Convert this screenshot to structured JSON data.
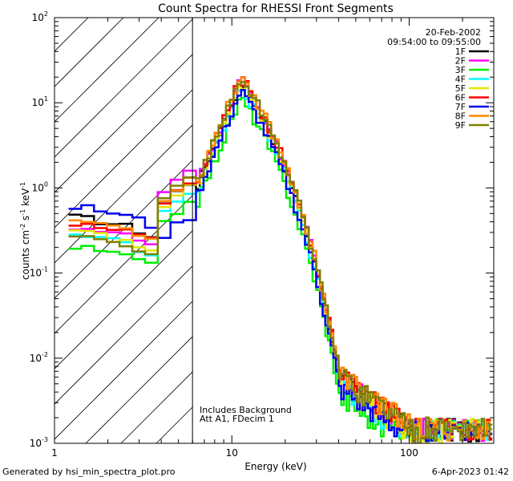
{
  "chart_data": {
    "type": "line",
    "title": "Count Spectra for RHESSI Front Segments",
    "xlabel": "Energy (keV)",
    "ylabel_parts": {
      "base": "counts cm",
      "exp1": "-2",
      "mid": " s",
      "exp2": "-1",
      "unit": " keV",
      "exp3": "-1"
    },
    "xscale": "log",
    "yscale": "log",
    "xlim": [
      1,
      300
    ],
    "ylim": [
      0.001,
      100
    ],
    "x_ticks": [
      {
        "value": 1,
        "label": "1"
      },
      {
        "value": 10,
        "label": "10"
      },
      {
        "value": 100,
        "label": "100"
      }
    ],
    "y_ticks": [
      {
        "value": 0.001,
        "base": "10",
        "exp": "-3"
      },
      {
        "value": 0.01,
        "base": "10",
        "exp": "-2"
      },
      {
        "value": 0.1,
        "base": "10",
        "exp": "-1"
      },
      {
        "value": 1,
        "base": "10",
        "exp": "0"
      },
      {
        "value": 10,
        "base": "10",
        "exp": "1"
      },
      {
        "value": 100,
        "base": "10",
        "exp": "2"
      }
    ],
    "date": "20-Feb-2002",
    "time_range": "09:54:00 to 09:55:00",
    "annotations": [
      "Includes Background",
      "Att A1, FDecim 1"
    ],
    "excluded_region_max_kev": 6,
    "legend_position": "top-right",
    "series": [
      {
        "name": "1F",
        "color": "#000000",
        "start": 0.45,
        "bump": 1.0,
        "peak": 18,
        "amp": 0.3
      },
      {
        "name": "2F",
        "color": "#ff00ff",
        "start": 0.35,
        "bump": 1.3,
        "peak": 19,
        "amp": 0.3
      },
      {
        "name": "3F",
        "color": "#00ee00",
        "start": 0.2,
        "bump": 0.6,
        "peak": 11.5,
        "amp": 0.3
      },
      {
        "name": "4F",
        "color": "#00ffff",
        "start": 0.28,
        "bump": 0.8,
        "peak": 15,
        "amp": 0.3
      },
      {
        "name": "5F",
        "color": "#e6e600",
        "start": 0.3,
        "bump": 0.9,
        "peak": 17,
        "amp": 0.35
      },
      {
        "name": "6F",
        "color": "#ff0000",
        "start": 0.4,
        "bump": 1.0,
        "peak": 20,
        "amp": 0.3
      },
      {
        "name": "7F",
        "color": "#0000ee",
        "start": 0.6,
        "bump": 0.4,
        "peak": 14,
        "amp": 0.3
      },
      {
        "name": "8F",
        "color": "#ff8800",
        "start": 0.42,
        "bump": 1.1,
        "peak": 21,
        "amp": 0.3
      },
      {
        "name": "9F",
        "color": "#808000",
        "start": 0.26,
        "bump": 1.2,
        "peak": 20,
        "amp": 0.35
      }
    ]
  },
  "footer": {
    "generated_by": "Generated by hsi_min_spectra_plot.pro",
    "timestamp": "6-Apr-2023 01:42"
  }
}
